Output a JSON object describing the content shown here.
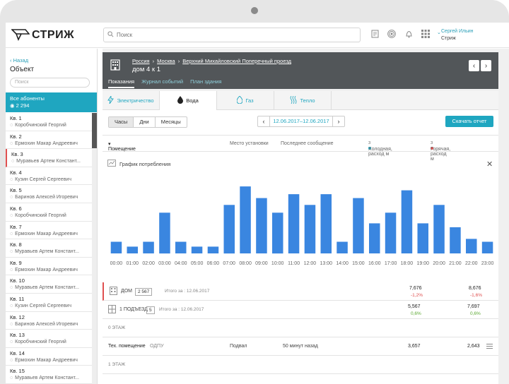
{
  "app": {
    "logo": "СТРИЖ",
    "search_placeholder": "Поиск",
    "user_name": "Сергей Ильин",
    "user_org": "Стриж"
  },
  "sidebar": {
    "back": "Назад",
    "title": "Объект",
    "search_placeholder": "Поиск",
    "all_label": "Все абоненты",
    "all_count": "2 294",
    "flats": [
      {
        "num": "Кв. 1",
        "owner": "Коробчинский Георгий"
      },
      {
        "num": "Кв. 2",
        "owner": "Ермохин Макар Андреевич"
      },
      {
        "num": "Кв. 3",
        "owner": "Муравьев Артем Констант..."
      },
      {
        "num": "Кв. 4",
        "owner": "Кузин Сергей Сергеевич"
      },
      {
        "num": "Кв. 5",
        "owner": "Баринов Алексей Игоревич"
      },
      {
        "num": "Кв. 6",
        "owner": "Коробчинский Георгий"
      },
      {
        "num": "Кв. 7",
        "owner": "Ермохин Макар Андреевич"
      },
      {
        "num": "Кв. 8",
        "owner": "Муравьев Артем Констант..."
      },
      {
        "num": "Кв. 9",
        "owner": "Ермохин Макар Андреевич"
      },
      {
        "num": "Кв. 10",
        "owner": "Муравьев Артем Констант..."
      },
      {
        "num": "Кв. 11",
        "owner": "Кузин Сергей Сергеевич"
      },
      {
        "num": "Кв. 12",
        "owner": "Баринов Алексей Игоревич"
      },
      {
        "num": "Кв. 13",
        "owner": "Коробчинский Георгий"
      },
      {
        "num": "Кв. 14",
        "owner": "Ермохин Макар Андреевич"
      },
      {
        "num": "Кв. 15",
        "owner": "Муравьев Артем Констант..."
      }
    ]
  },
  "header": {
    "crumbs": [
      "Россия",
      "Москва",
      "Верхний Михайловский Поперечный проезд"
    ],
    "address": "дом 4 к 1",
    "tabs": [
      "Показания",
      "Журнал событий",
      "План здания"
    ]
  },
  "resources": [
    "Электричество",
    "Вода",
    "Газ",
    "Тепло"
  ],
  "controls": {
    "periods": [
      "Часы",
      "Дни",
      "Месяцы"
    ],
    "date_range": "12.06.2017–12.06.2017",
    "download": "Скачать  отчет"
  },
  "columns": {
    "room": "Помещение",
    "place": "Место установки",
    "last": "Последнее сообщение",
    "cold": "Холодная, расход м",
    "hot": "Горячая, расход м",
    "cold_color": "#1fa6c0",
    "hot_color": "#e05050"
  },
  "chart_data": {
    "type": "bar",
    "title": "График потребления",
    "categories": [
      "00:00",
      "01:00",
      "02:00",
      "03:00",
      "04:00",
      "05:00",
      "06:00",
      "07:00",
      "08:00",
      "09:00",
      "10:00",
      "11:00",
      "12:00",
      "13:00",
      "14:00",
      "15:00",
      "16:00",
      "17:00",
      "18:00",
      "19:00",
      "20:00",
      "21:00",
      "22:00",
      "23:00"
    ],
    "values": [
      12,
      7,
      12,
      42,
      12,
      7,
      7,
      50,
      69,
      57,
      42,
      61,
      50,
      61,
      12,
      57,
      31,
      42,
      65,
      31,
      50,
      27,
      15,
      12
    ],
    "color": "#3a86e0",
    "ylim": [
      0,
      80
    ]
  },
  "summary": [
    {
      "label": "ДОМ",
      "badge": "2 567",
      "total": "Итого за : 12.06.2017",
      "cold": "7,676",
      "cold_delta": "-1,2%",
      "hot": "8,676",
      "hot_delta": "-1,6%"
    },
    {
      "label": "1 ПОДЪЕЗД",
      "badge": "5",
      "total": "Итого за : 12.06.2017",
      "cold": "5,567",
      "cold_delta": "0,6%",
      "hot": "7,697",
      "hot_delta": "0,6%"
    }
  ],
  "floors": {
    "f0": "0 ЭТАЖ",
    "f1": "1 ЭТАЖ"
  },
  "tech_row": {
    "name": "Тех. помещение",
    "type": "ОДПУ",
    "place": "Подвал",
    "last": "50 минут назад",
    "cold": "3,657",
    "hot": "2,643"
  }
}
